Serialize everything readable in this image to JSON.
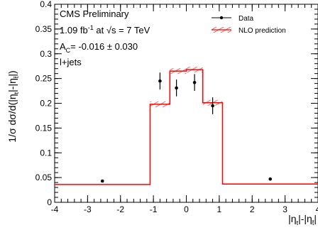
{
  "chart_data": {
    "type": "step",
    "xlim": [
      -4,
      4
    ],
    "ylim": [
      0,
      0.4
    ],
    "x_ticks": [
      -4,
      -3,
      -2,
      -1,
      0,
      1,
      2,
      3,
      4
    ],
    "y_ticks": [
      0,
      0.05,
      0.1,
      0.15,
      0.2,
      0.25,
      0.3,
      0.35,
      0.4
    ],
    "x_tick_labels": [
      "-4",
      "-3",
      "-2",
      "-1",
      "0",
      "1",
      "2",
      "3",
      "4"
    ],
    "y_tick_labels": [
      "0",
      "0.05",
      "0.1",
      "0.15",
      "0.2",
      "0.25",
      "0.3",
      "0.35",
      "0.4"
    ],
    "ylabel": "1/σ dσ/d(|η",
    "ylabel_sub1": "t",
    "ylabel_mid": "|-|η",
    "ylabel_sub2": "t̄",
    "ylabel_end": "|)",
    "xlabel": "|η",
    "xlabel_sub1": "t",
    "xlabel_mid": "|-|η",
    "xlabel_sub2": "t̄",
    "xlabel_end": "|",
    "annotations": {
      "line1": "CMS Preliminary",
      "line2_a": "1.09 fb",
      "line2_sup": "-1",
      "line2_b": " at √s = 7 TeV",
      "line3_a": "A",
      "line3_sub": "C",
      "line3_b": "= -0.016 ± 0.030",
      "line4": "l+jets"
    },
    "series": [
      {
        "name": "Data",
        "type": "points",
        "color": "#000000",
        "x": [
          -2.55,
          -0.8,
          -0.3,
          0.25,
          0.8,
          2.55
        ],
        "y": [
          0.043,
          0.245,
          0.231,
          0.242,
          0.195,
          0.047
        ],
        "yerr": [
          0.0,
          0.017,
          0.017,
          0.017,
          0.017,
          0.0
        ]
      },
      {
        "name": "NLO prediction",
        "type": "step",
        "color": "#ff0000",
        "bins": [
          {
            "x0": -4.0,
            "x1": -1.1,
            "y": 0.036
          },
          {
            "x0": -1.1,
            "x1": -0.5,
            "y": 0.198
          },
          {
            "x0": -0.5,
            "x1": 0.0,
            "y": 0.265
          },
          {
            "x0": 0.0,
            "x1": 0.5,
            "y": 0.268
          },
          {
            "x0": 0.5,
            "x1": 1.1,
            "y": 0.201
          },
          {
            "x0": 1.1,
            "x1": 4.0,
            "y": 0.037
          }
        ],
        "hatch_bins": [
          1,
          2,
          3,
          4
        ]
      }
    ],
    "legend": [
      {
        "label": "Data",
        "marker": "point"
      },
      {
        "label": "NLO prediction",
        "marker": "hatch"
      }
    ]
  }
}
